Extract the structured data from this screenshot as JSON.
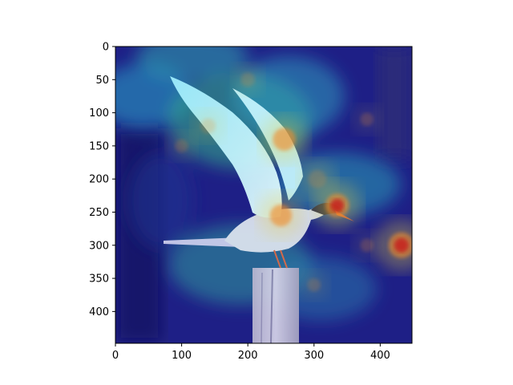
{
  "chart_data": {
    "type": "heatmap",
    "description_kind": "image with saliency heatmap overlay (jet colormap)",
    "x_ticks": [
      0,
      100,
      200,
      300,
      400
    ],
    "y_ticks": [
      0,
      50,
      100,
      150,
      200,
      250,
      300,
      350,
      400
    ],
    "xlim": [
      0,
      448
    ],
    "ylim": [
      448,
      0
    ],
    "y_axis_inverted": true,
    "colormap": "jet",
    "grid": false,
    "hotspots": [
      {
        "x": 432,
        "y": 300,
        "intensity": 1.0
      },
      {
        "x": 335,
        "y": 240,
        "intensity": 0.9
      },
      {
        "x": 255,
        "y": 140,
        "intensity": 0.85
      },
      {
        "x": 250,
        "y": 255,
        "intensity": 0.8
      },
      {
        "x": 305,
        "y": 200,
        "intensity": 0.6
      },
      {
        "x": 140,
        "y": 120,
        "intensity": 0.45
      },
      {
        "x": 200,
        "y": 50,
        "intensity": 0.4
      },
      {
        "x": 100,
        "y": 150,
        "intensity": 0.35
      },
      {
        "x": 380,
        "y": 110,
        "intensity": 0.35
      },
      {
        "x": 380,
        "y": 300,
        "intensity": 0.35
      },
      {
        "x": 300,
        "y": 360,
        "intensity": 0.35
      }
    ]
  }
}
